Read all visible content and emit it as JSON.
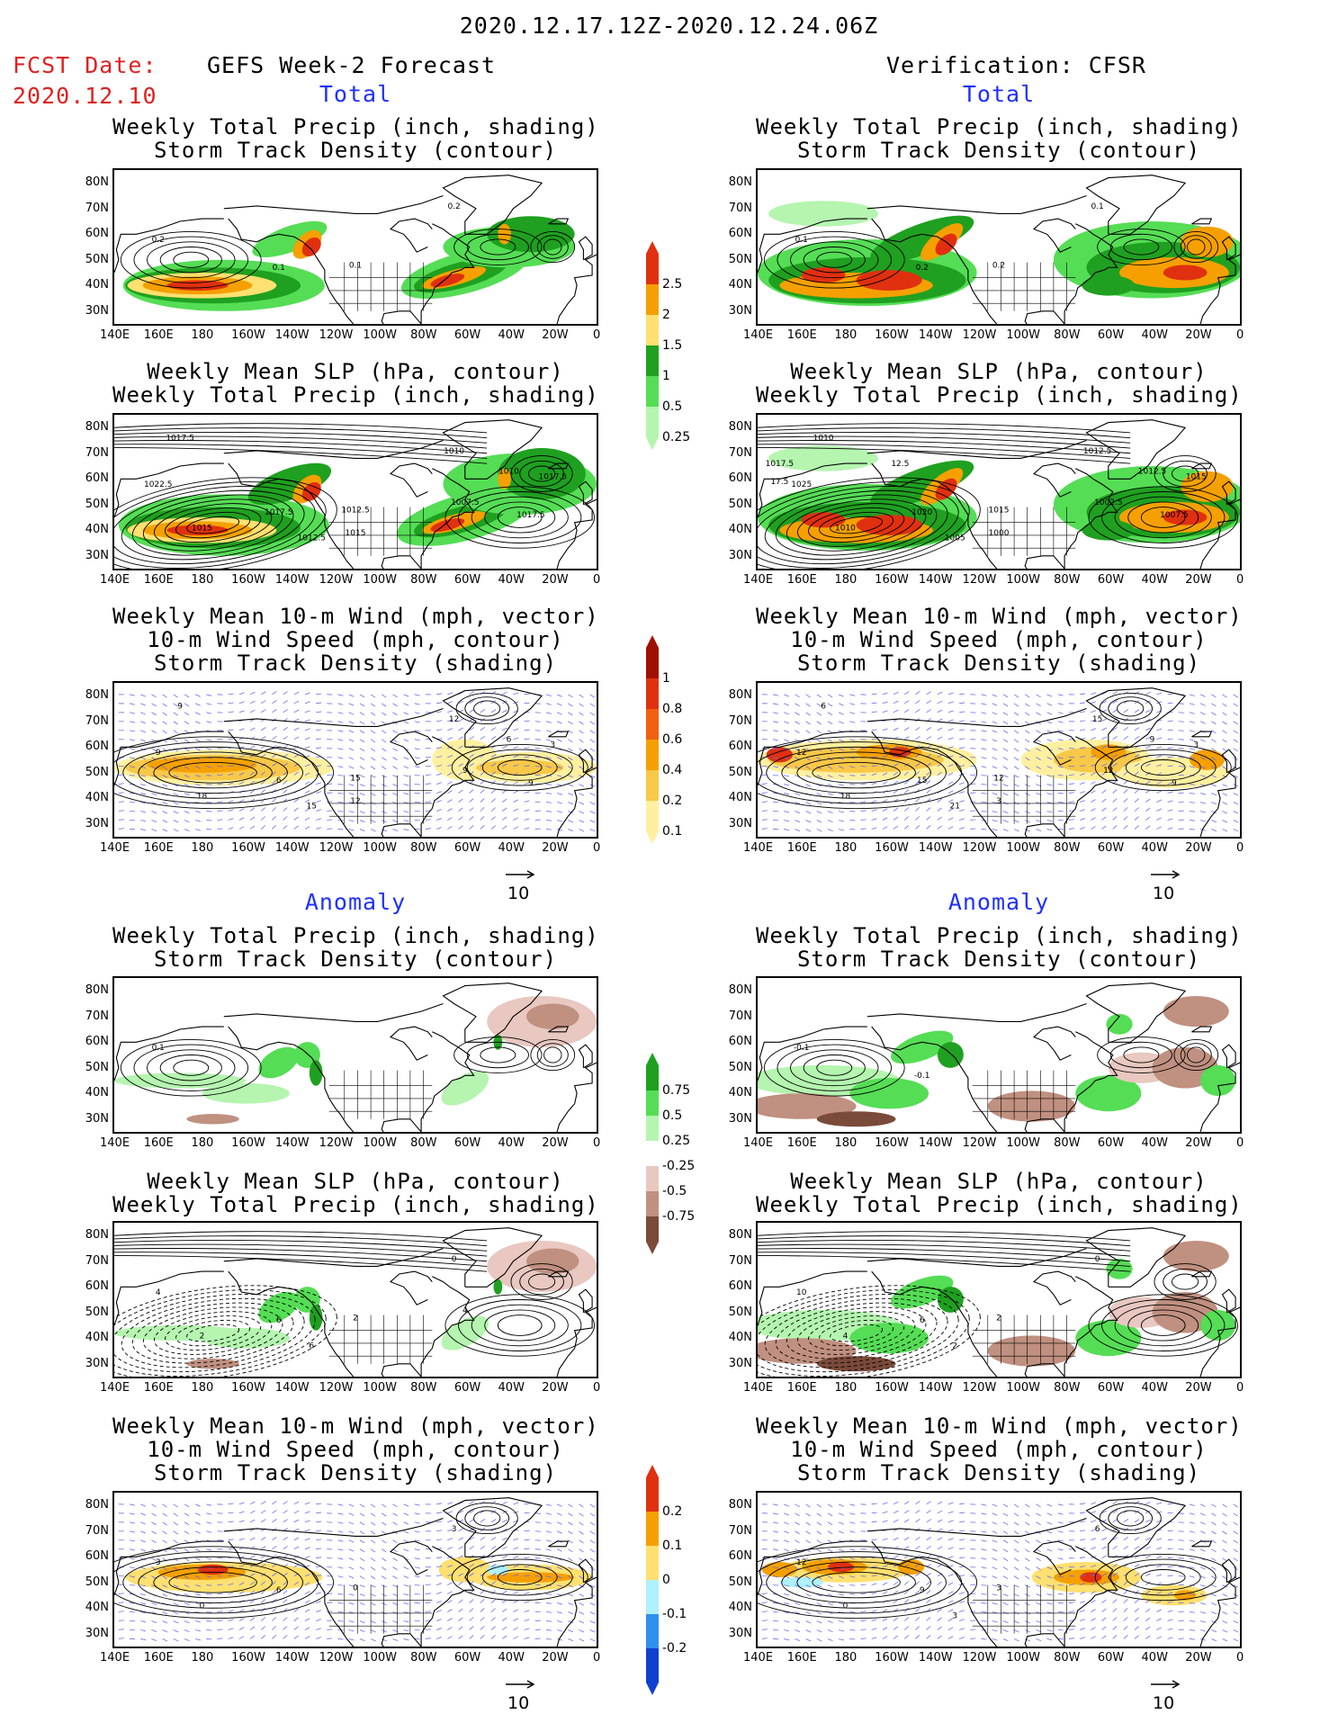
{
  "header": {
    "date_range": "2020.12.17.12Z-2020.12.24.06Z",
    "fcst_label": "FCST Date:",
    "fcst_date": "2020.12.10",
    "left_title": "GEFS Week-2 Forecast",
    "right_title": "Verification: CFSR",
    "total_label": "Total",
    "anomaly_label": "Anomaly"
  },
  "titles": {
    "precip_storm": [
      "Weekly Total Precip (inch, shading)",
      "Storm Track Density (contour)"
    ],
    "slp_precip": [
      "Weekly Mean SLP (hPa, contour)",
      "Weekly Total Precip (inch, shading)"
    ],
    "wind_storm": [
      "Weekly Mean 10-m Wind (mph, vector)",
      "10-m Wind Speed (mph, contour)",
      "Storm Track Density (shading)"
    ]
  },
  "axes": {
    "lat_ticks": [
      "80N",
      "70N",
      "60N",
      "50N",
      "40N",
      "30N"
    ],
    "lon_ticks": [
      "140E",
      "160E",
      "180",
      "160W",
      "140W",
      "120W",
      "100W",
      "80W",
      "60W",
      "40W",
      "20W",
      "0"
    ]
  },
  "vector_reference": "10",
  "colorbars": {
    "precip_total": {
      "labels": [
        "2.5",
        "2",
        "1.5",
        "1",
        "0.5",
        "0.25"
      ],
      "colors": [
        "#e03010",
        "#f5a000",
        "#ffe070",
        "#1fa020",
        "#55dd55",
        "#b5f5b0"
      ]
    },
    "storm_total": {
      "labels": [
        "1",
        "0.8",
        "0.6",
        "0.4",
        "0.2",
        "0.1"
      ],
      "colors": [
        "#a01000",
        "#e03010",
        "#f06010",
        "#f5a000",
        "#f8c848",
        "#fff0a0"
      ]
    },
    "precip_anom": {
      "labels": [
        "0.75",
        "0.5",
        "0.25",
        "-0.25",
        "-0.5",
        "-0.75"
      ],
      "colors": [
        "#1fa020",
        "#55dd55",
        "#b5f5b0",
        "#ffffff",
        "#e8c8c0",
        "#c09080",
        "#7a4a3a"
      ]
    },
    "storm_anom": {
      "labels": [
        "0.2",
        "0.1",
        "0",
        "-0.1",
        "-0.2"
      ],
      "colors": [
        "#e03010",
        "#f5a000",
        "#ffe070",
        "#b0f0ff",
        "#3090f0",
        "#1040d0"
      ]
    }
  },
  "map_labels": {
    "p1": [
      "0.2",
      "0.1",
      "0.1",
      "0.2"
    ],
    "p2": [
      "0.1",
      "0.2",
      "0.2",
      "0.1"
    ],
    "p3": [
      "1022.5",
      "1017.5",
      "1012.5",
      "1010",
      "1015",
      "1012.5",
      "1007.5",
      "1017.5",
      "1015",
      "1017.5",
      "1010",
      "1017.5"
    ],
    "p4": [
      "1025",
      "1020",
      "1015",
      "1012.5",
      "1010",
      "1005",
      "1002.5",
      "1007.5",
      "1000",
      "1010",
      "1012.5",
      "1015",
      "1017.5",
      "17.5",
      "12.5"
    ],
    "p5": [
      "9",
      "6",
      "15",
      "12",
      "18",
      "15",
      "9",
      "9",
      "12",
      "9",
      "6",
      "3"
    ],
    "p6": [
      "12",
      "15",
      "12",
      "15",
      "18",
      "21",
      "12",
      "9",
      "3",
      "6",
      "9",
      "3"
    ],
    "p7": [
      "0.1"
    ],
    "p8": [
      "-0.1",
      "-0.1"
    ],
    "p9": [
      "4",
      "6",
      "2",
      "0",
      "2",
      "6",
      "4"
    ],
    "p10": [
      "10",
      "6",
      "2",
      "0",
      "4",
      "2"
    ],
    "p11": [
      "3",
      "6",
      "0",
      "3",
      "0"
    ],
    "p12": [
      "12",
      "9",
      "3",
      "6",
      "0",
      "3"
    ]
  }
}
